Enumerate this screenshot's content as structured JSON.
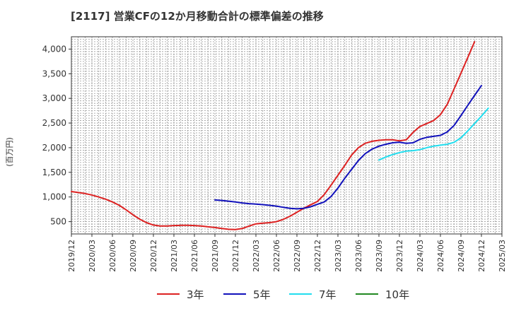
{
  "chart_data": {
    "type": "line",
    "title": "[2117]  営業CFの12か月移動合計の標準偏差の推移",
    "ylabel": "(百万円)",
    "xlabel": "",
    "ylim": [
      250,
      4250
    ],
    "yticks": [
      500,
      1000,
      1500,
      2000,
      2500,
      3000,
      3500,
      4000
    ],
    "ytick_labels": [
      "500",
      "1,000",
      "1,500",
      "2,000",
      "2,500",
      "3,000",
      "3,500",
      "4,000"
    ],
    "xtick_labels": [
      "2019/12",
      "2020/03",
      "2020/06",
      "2020/09",
      "2020/12",
      "2021/03",
      "2021/06",
      "2021/09",
      "2021/12",
      "2022/03",
      "2022/06",
      "2022/09",
      "2022/12",
      "2023/03",
      "2023/06",
      "2023/09",
      "2023/12",
      "2024/03",
      "2024/06",
      "2024/09",
      "2024/12",
      "2025/03"
    ],
    "x_start": "2019/12",
    "grid": true,
    "legend_position": "bottom",
    "series": [
      {
        "name": "3年",
        "color": "#dd2222",
        "start": "2019/12",
        "values": [
          1110,
          1090,
          1070,
          1040,
          1000,
          955,
          900,
          830,
          740,
          640,
          550,
          480,
          430,
          410,
          410,
          420,
          425,
          425,
          420,
          410,
          395,
          380,
          360,
          345,
          340,
          360,
          410,
          455,
          470,
          480,
          500,
          545,
          610,
          690,
          770,
          840,
          910,
          1050,
          1240,
          1440,
          1640,
          1850,
          2000,
          2090,
          2130,
          2150,
          2160,
          2160,
          2140,
          2160,
          2310,
          2430,
          2490,
          2550,
          2670,
          2880,
          3190,
          3510,
          3830,
          4150
        ]
      },
      {
        "name": "5年",
        "color": "#1111bb",
        "start": "2021/09",
        "values": [
          940,
          930,
          915,
          900,
          880,
          865,
          855,
          845,
          830,
          815,
          790,
          770,
          760,
          770,
          800,
          850,
          900,
          1010,
          1180,
          1380,
          1560,
          1740,
          1880,
          1970,
          2030,
          2070,
          2100,
          2110,
          2090,
          2100,
          2170,
          2210,
          2230,
          2250,
          2320,
          2450,
          2650,
          2860,
          3060,
          3260
        ]
      },
      {
        "name": "7年",
        "color": "#22ddee",
        "start": "2023/09",
        "values": [
          1750,
          1810,
          1860,
          1900,
          1930,
          1940,
          1960,
          2000,
          2030,
          2050,
          2070,
          2110,
          2200,
          2340,
          2490,
          2640,
          2800
        ]
      },
      {
        "name": "10年",
        "color": "#228822",
        "start": "",
        "values": []
      }
    ]
  }
}
